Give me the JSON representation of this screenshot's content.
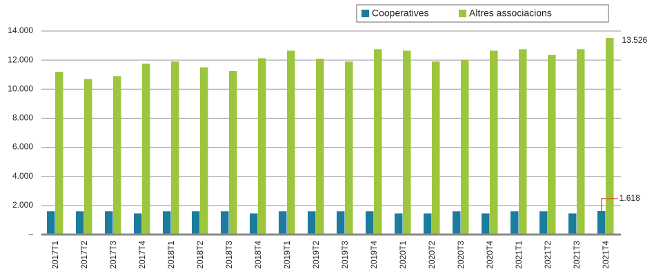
{
  "chart_data": {
    "type": "bar",
    "categories": [
      "2017T1",
      "2017T2",
      "2017T3",
      "2017T4",
      "2018T1",
      "2018T2",
      "2018T3",
      "2018T4",
      "2019T1",
      "2019T2",
      "2019T3",
      "2019T4",
      "2020T1",
      "2020T2",
      "2020T3",
      "2020T4",
      "2021T1",
      "2021T2",
      "2021T3",
      "2021T4"
    ],
    "series": [
      {
        "name": "Cooperatives",
        "color": "#1b7c9e",
        "values": [
          1600,
          1600,
          1600,
          1450,
          1600,
          1600,
          1600,
          1450,
          1600,
          1600,
          1600,
          1600,
          1450,
          1450,
          1600,
          1450,
          1600,
          1600,
          1450,
          1618
        ],
        "value_labels": [
          null,
          null,
          null,
          null,
          null,
          null,
          null,
          null,
          null,
          null,
          null,
          null,
          null,
          null,
          null,
          null,
          null,
          null,
          null,
          "1.618"
        ]
      },
      {
        "name": "Altres associacions",
        "color": "#9cc63e",
        "values": [
          11200,
          10700,
          10900,
          11750,
          11900,
          11500,
          11250,
          12130,
          12650,
          12100,
          11900,
          12750,
          12650,
          11900,
          12000,
          12650,
          12750,
          12350,
          12750,
          13526
        ],
        "value_labels": [
          null,
          null,
          null,
          null,
          null,
          null,
          null,
          null,
          null,
          null,
          null,
          null,
          null,
          null,
          null,
          null,
          null,
          null,
          null,
          "13.526"
        ]
      }
    ],
    "ylim": [
      0,
      14000
    ],
    "yticks": [
      {
        "value": 0,
        "label": "–"
      },
      {
        "value": 2000,
        "label": "2.000"
      },
      {
        "value": 4000,
        "label": "4.000"
      },
      {
        "value": 6000,
        "label": "6.000"
      },
      {
        "value": 8000,
        "label": "8.000"
      },
      {
        "value": 10000,
        "label": "10.000"
      },
      {
        "value": 12000,
        "label": "12.000"
      },
      {
        "value": 14000,
        "label": "14.000"
      }
    ],
    "grid": true,
    "legend": "top-right"
  }
}
